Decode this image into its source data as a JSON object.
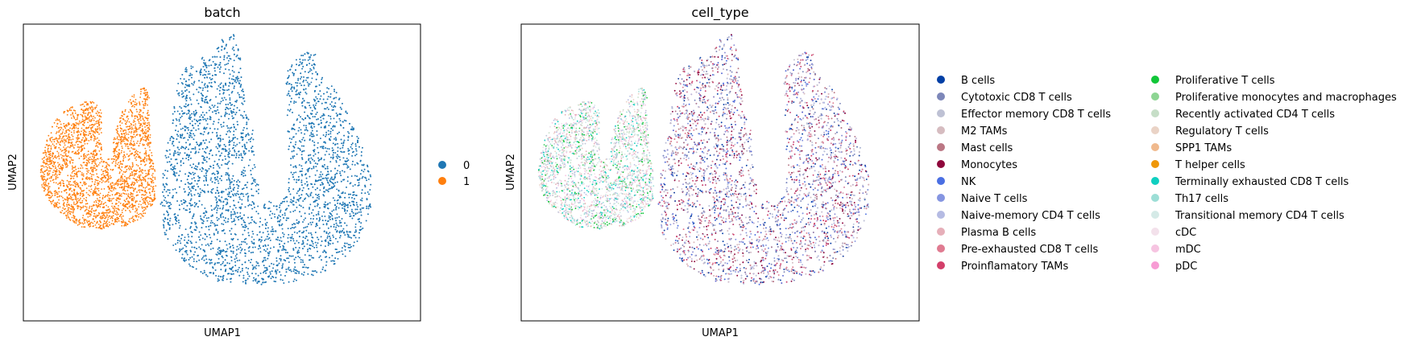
{
  "chart_data": [
    {
      "type": "scatter",
      "title": "batch",
      "xlabel": "UMAP1",
      "ylabel": "UMAP2",
      "grid": false,
      "legend_position": "right",
      "colors": {
        "0": "#1f77b4",
        "1": "#ff7f0e"
      },
      "legend": [
        {
          "label": "0",
          "color": "#1f77b4"
        },
        {
          "label": "1",
          "color": "#ff7f0e"
        }
      ],
      "clusters": [
        {
          "name": "1",
          "description": "small cluster on left"
        },
        {
          "name": "0",
          "description": "large cluster on right"
        }
      ]
    },
    {
      "type": "scatter",
      "title": "cell_type",
      "xlabel": "UMAP1",
      "ylabel": "UMAP2",
      "grid": false,
      "legend_position": "right",
      "legend": [
        {
          "label": "B cells",
          "color": "#023fa5"
        },
        {
          "label": "Cytotoxic CD8 T cells",
          "color": "#7d87b9"
        },
        {
          "label": "Effector memory CD8 T cells",
          "color": "#bec1d4"
        },
        {
          "label": "M2 TAMs",
          "color": "#d6bcc0"
        },
        {
          "label": "Mast cells",
          "color": "#bb7784"
        },
        {
          "label": "Monocytes",
          "color": "#8e063b"
        },
        {
          "label": "NK",
          "color": "#4a6fe3"
        },
        {
          "label": "Naive T cells",
          "color": "#8595e1"
        },
        {
          "label": "Naive-memory CD4 T cells",
          "color": "#b5bbe3"
        },
        {
          "label": "Plasma B cells",
          "color": "#e6afb9"
        },
        {
          "label": "Pre-exhausted CD8 T cells",
          "color": "#e07b91"
        },
        {
          "label": "Proinflamatory TAMs",
          "color": "#d33f6a"
        },
        {
          "label": "Proliferative T cells",
          "color": "#11c638"
        },
        {
          "label": "Proliferative monocytes and macrophages",
          "color": "#8dd593"
        },
        {
          "label": "Recently activated CD4 T cells",
          "color": "#c6dec7"
        },
        {
          "label": "Regulatory T cells",
          "color": "#ead3c6"
        },
        {
          "label": "SPP1 TAMs",
          "color": "#f0b98d"
        },
        {
          "label": "T helper cells",
          "color": "#ef9708"
        },
        {
          "label": "Terminally exhausted CD8 T cells",
          "color": "#0fcfc0"
        },
        {
          "label": "Th17 cells",
          "color": "#9cded6"
        },
        {
          "label": "Transitional memory CD4 T cells",
          "color": "#d5eae7"
        },
        {
          "label": "cDC",
          "color": "#f3e1eb"
        },
        {
          "label": "mDC",
          "color": "#f6c4e1"
        },
        {
          "label": "pDC",
          "color": "#f79cd4"
        }
      ],
      "clusters": [
        {
          "name": "left",
          "dominant": [
            "Transitional memory CD4 T cells",
            "Th17 cells",
            "Naive-memory CD4 T cells",
            "Proliferative T cells",
            "Plasma B cells"
          ]
        },
        {
          "name": "right",
          "dominant": [
            "B cells",
            "Monocytes",
            "Cytotoxic CD8 T cells",
            "Proinflamatory TAMs",
            "Naive T cells"
          ]
        }
      ]
    }
  ]
}
